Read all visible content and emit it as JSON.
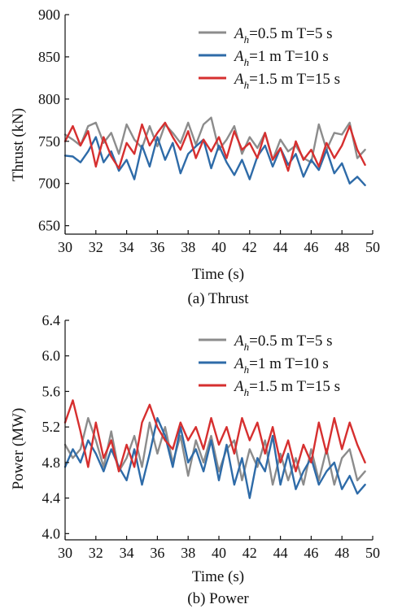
{
  "chart_data": [
    {
      "type": "line",
      "ylabel": "Thrust (kN)",
      "xlabel": "Time (s)",
      "caption": "(a) Thrust",
      "xlim": [
        30,
        50
      ],
      "ylim": [
        640,
        900
      ],
      "xticks": [
        30,
        32,
        34,
        36,
        38,
        40,
        42,
        44,
        46,
        48,
        50
      ],
      "yticks": [
        650,
        700,
        750,
        800,
        850,
        900
      ],
      "legend_position": "top-right",
      "x": [
        30.0,
        30.5,
        31.0,
        31.5,
        32.0,
        32.5,
        33.0,
        33.5,
        34.0,
        34.5,
        35.0,
        35.5,
        36.0,
        36.5,
        37.0,
        37.5,
        38.0,
        38.5,
        39.0,
        39.5,
        40.0,
        40.5,
        41.0,
        41.5,
        42.0,
        42.5,
        43.0,
        43.5,
        44.0,
        44.5,
        45.0,
        45.5,
        46.0,
        46.5,
        47.0,
        47.5,
        48.0,
        48.5,
        49.0,
        49.5
      ],
      "series": [
        {
          "legend": {
            "var": "A",
            "sub": "h",
            "text": "=0.5 m T=5 s"
          },
          "color": "#8c8c8c",
          "values": [
            758,
            752,
            745,
            768,
            772,
            748,
            760,
            735,
            770,
            752,
            742,
            768,
            744,
            770,
            760,
            748,
            772,
            746,
            770,
            778,
            740,
            752,
            768,
            735,
            755,
            742,
            760,
            728,
            752,
            738,
            745,
            730,
            725,
            770,
            740,
            760,
            758,
            772,
            730,
            740
          ]
        },
        {
          "legend": {
            "var": "A",
            "sub": "h",
            "text": "=1 m    T=10 s"
          },
          "color": "#2e6ba8",
          "values": [
            733,
            732,
            725,
            738,
            755,
            725,
            738,
            715,
            728,
            705,
            745,
            720,
            755,
            728,
            748,
            712,
            735,
            744,
            752,
            718,
            745,
            725,
            710,
            728,
            705,
            732,
            745,
            720,
            742,
            722,
            735,
            708,
            728,
            716,
            740,
            712,
            724,
            700,
            708,
            698
          ]
        },
        {
          "legend": {
            "var": "A",
            "sub": "h",
            "text": "=1.5 m T=15 s"
          },
          "color": "#d62f2f",
          "values": [
            750,
            768,
            745,
            762,
            720,
            755,
            732,
            718,
            748,
            735,
            770,
            745,
            760,
            772,
            755,
            740,
            762,
            730,
            752,
            738,
            755,
            730,
            762,
            740,
            748,
            730,
            760,
            728,
            742,
            715,
            750,
            728,
            740,
            720,
            748,
            730,
            745,
            768,
            740,
            722
          ]
        }
      ]
    },
    {
      "type": "line",
      "ylabel": "Power (MW)",
      "xlabel": "Time (s)",
      "caption": "(b) Power",
      "xlim": [
        30,
        50
      ],
      "ylim": [
        3.93,
        6.4
      ],
      "xticks": [
        30,
        32,
        34,
        36,
        38,
        40,
        42,
        44,
        46,
        48,
        50
      ],
      "yticks": [
        4.0,
        4.4,
        4.8,
        5.2,
        5.6,
        6.0,
        6.4
      ],
      "legend_position": "top-right",
      "x": [
        30.0,
        30.5,
        31.0,
        31.5,
        32.0,
        32.5,
        33.0,
        33.5,
        34.0,
        34.5,
        35.0,
        35.5,
        36.0,
        36.5,
        37.0,
        37.5,
        38.0,
        38.5,
        39.0,
        39.5,
        40.0,
        40.5,
        41.0,
        41.5,
        42.0,
        42.5,
        43.0,
        43.5,
        44.0,
        44.5,
        45.0,
        45.5,
        46.0,
        46.5,
        47.0,
        47.5,
        48.0,
        48.5,
        49.0,
        49.5
      ],
      "series": [
        {
          "legend": {
            "var": "A",
            "sub": "h",
            "text": "=0.5 m T=5 s"
          },
          "color": "#8c8c8c",
          "values": [
            5.0,
            4.85,
            4.95,
            5.3,
            5.05,
            4.75,
            5.15,
            4.7,
            4.85,
            5.1,
            4.75,
            5.25,
            4.9,
            5.2,
            4.8,
            5.1,
            4.65,
            5.05,
            4.8,
            5.1,
            4.7,
            4.95,
            5.05,
            4.6,
            4.95,
            4.75,
            5.05,
            4.55,
            4.9,
            4.6,
            4.85,
            4.55,
            4.95,
            4.6,
            4.95,
            4.55,
            4.85,
            4.95,
            4.6,
            4.7
          ]
        },
        {
          "legend": {
            "var": "A",
            "sub": "h",
            "text": "=1 m    T=10 s"
          },
          "color": "#2e6ba8",
          "values": [
            4.75,
            4.95,
            4.8,
            5.05,
            4.9,
            4.7,
            4.95,
            4.75,
            4.6,
            4.95,
            4.55,
            4.9,
            5.3,
            5.1,
            4.75,
            5.2,
            4.8,
            4.95,
            4.7,
            5.05,
            4.6,
            5.0,
            4.55,
            4.85,
            4.4,
            4.85,
            4.7,
            5.1,
            4.55,
            4.9,
            4.5,
            4.7,
            4.85,
            4.55,
            4.7,
            4.8,
            4.5,
            4.65,
            4.45,
            4.55
          ]
        },
        {
          "legend": {
            "var": "A",
            "sub": "h",
            "text": "=1.5 m T=15 s"
          },
          "color": "#d62f2f",
          "values": [
            5.25,
            5.5,
            5.15,
            4.75,
            5.25,
            4.85,
            5.05,
            4.7,
            5.0,
            4.75,
            5.25,
            5.45,
            5.2,
            5.05,
            4.95,
            5.25,
            5.05,
            5.2,
            4.95,
            5.3,
            5.0,
            5.2,
            4.9,
            5.3,
            5.05,
            5.25,
            4.9,
            5.2,
            4.8,
            5.05,
            4.7,
            5.0,
            4.8,
            5.25,
            4.9,
            5.3,
            4.95,
            5.25,
            5.0,
            4.8
          ]
        }
      ]
    }
  ]
}
